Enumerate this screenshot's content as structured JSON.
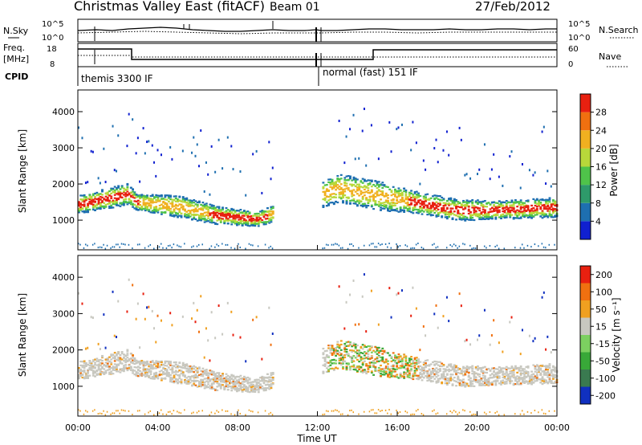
{
  "header": {
    "title": "Christmas Valley East (fitACF)",
    "beam": "Beam 01",
    "date": "27/Feb/2012"
  },
  "top_panels": {
    "nsky_label": "N.Sky",
    "nsky_ticks": [
      "10^5",
      "10^0"
    ],
    "nsearch_label": "N.Search",
    "nsearch_ticks": [
      "10^5",
      "10^0"
    ],
    "freq_label": "Freq.",
    "freq_unit": "[MHz]",
    "freq_ticks": [
      "18",
      "8"
    ],
    "nave_label": "Nave",
    "nave_ticks": [
      "60",
      "0"
    ],
    "cpid_label": "CPID",
    "cpid_segments": [
      {
        "label": "themis 3300 IF",
        "start_hour": 0,
        "end_hour": 12
      },
      {
        "label": "normal (fast) 151 IF",
        "start_hour": 12,
        "end_hour": 24
      }
    ]
  },
  "chart_data": [
    {
      "type": "heatmap",
      "title": "",
      "ylabel": "Slant Range [km]",
      "colorbar_label": "Power [dB]",
      "colorbar_ticks": [
        "28",
        "24",
        "20",
        "16",
        "12",
        "8",
        "4"
      ],
      "colorbar_colors": [
        "#1020d0",
        "#1e6fb0",
        "#2e9a6a",
        "#4fc34a",
        "#b8d83a",
        "#f0b020",
        "#f07010",
        "#e82010"
      ],
      "yticks": [
        "4000",
        "3000",
        "2000",
        "1000"
      ],
      "ylim": [
        180,
        4600
      ],
      "xlim": [
        0,
        24
      ],
      "dominant_band_km": [
        {
          "x": 0.0,
          "lo": 1200,
          "hi": 1700
        },
        {
          "x": 2.5,
          "lo": 1450,
          "hi": 2050
        },
        {
          "x": 2.9,
          "lo": 1300,
          "hi": 1750
        },
        {
          "x": 5.0,
          "lo": 1100,
          "hi": 1700
        },
        {
          "x": 7.0,
          "lo": 900,
          "hi": 1400
        },
        {
          "x": 9.0,
          "lo": 850,
          "hi": 1250
        },
        {
          "x": 13.0,
          "lo": 1500,
          "hi": 2300
        },
        {
          "x": 15.0,
          "lo": 1300,
          "hi": 2100
        },
        {
          "x": 17.0,
          "lo": 1200,
          "hi": 1800
        },
        {
          "x": 19.0,
          "lo": 1000,
          "hi": 1600
        },
        {
          "x": 21.0,
          "lo": 1050,
          "hi": 1550
        },
        {
          "x": 24.0,
          "lo": 1100,
          "hi": 1650
        }
      ]
    },
    {
      "type": "heatmap",
      "title": "",
      "ylabel": "Slant Range [km]",
      "xlabel": "Time UT",
      "colorbar_label": "Velocity [m s⁻¹]",
      "colorbar_ticks": [
        "200",
        "100",
        "50",
        "15",
        "-15",
        "-50",
        "-100",
        "-200"
      ],
      "colorbar_colors": [
        "#1030c0",
        "#3a7a50",
        "#38a838",
        "#7cd060",
        "#c8c8c0",
        "#f0a020",
        "#f07010",
        "#e82010"
      ],
      "yticks": [
        "4000",
        "3000",
        "2000",
        "1000"
      ],
      "xticks": [
        "00:00",
        "04:00",
        "08:00",
        "12:00",
        "16:00",
        "20:00",
        "00:00"
      ],
      "ylim": [
        180,
        4600
      ],
      "xlim": [
        0,
        24
      ]
    }
  ]
}
